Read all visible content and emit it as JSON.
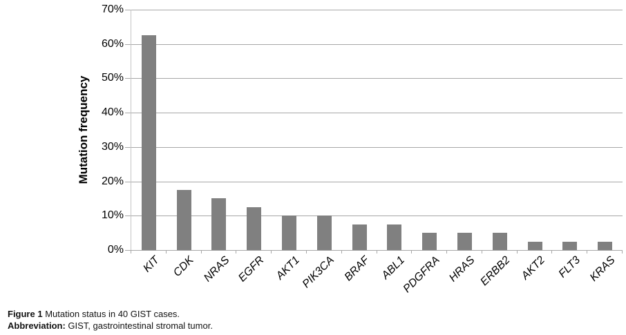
{
  "chart_data": {
    "type": "bar",
    "title": "",
    "xlabel": "",
    "ylabel": "Mutation frequency",
    "categories": [
      "KIT",
      "CDK",
      "NRAS",
      "EGFR",
      "AKT1",
      "PIK3CA",
      "BRAF",
      "ABL1",
      "PDGFRA",
      "HRAS",
      "ERBB2",
      "AKT2",
      "FLT3",
      "KRAS"
    ],
    "values": [
      62.5,
      17.5,
      15,
      12.5,
      10,
      10,
      7.5,
      7.5,
      5,
      5,
      5,
      2.5,
      2.5,
      2.5
    ],
    "value_unit": "%",
    "ylim": [
      0,
      70
    ],
    "ytick_step": 10,
    "ytick_labels": [
      "0%",
      "10%",
      "20%",
      "30%",
      "40%",
      "50%",
      "60%",
      "70%"
    ],
    "grid": true,
    "legend": null,
    "bar_color": "#808080",
    "gridline_color": "#a6a6a6",
    "axis_color": "#a6a6a6"
  },
  "caption": {
    "figure_label": "Figure 1",
    "figure_text": " Mutation status in 40 GIST cases.",
    "abbreviation_label": "Abbreviation:",
    "abbreviation_text": " GIST, gastrointestinal stromal tumor."
  }
}
